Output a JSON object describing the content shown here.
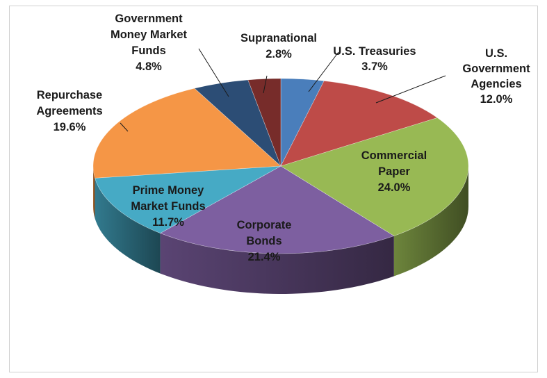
{
  "chart_data": {
    "type": "pie",
    "title": "",
    "slices": [
      {
        "label": "U.S. Treasuries",
        "value": 3.7,
        "display": "3.7%",
        "color": "#4a7ebb"
      },
      {
        "label": "U.S. Government Agencies",
        "value": 12.0,
        "display": "12.0%",
        "color": "#be4b48"
      },
      {
        "label": "Commercial Paper",
        "value": 24.0,
        "display": "24.0%",
        "color": "#98b954"
      },
      {
        "label": "Corporate Bonds",
        "value": 21.4,
        "display": "21.4%",
        "color": "#7d5fa0"
      },
      {
        "label": "Prime Money Market Funds",
        "value": 11.7,
        "display": "11.7%",
        "color": "#46aac5"
      },
      {
        "label": "Repurchase Agreements",
        "value": 19.6,
        "display": "19.6%",
        "color": "#f59646"
      },
      {
        "label": "Government Money Market Funds",
        "value": 4.8,
        "display": "4.8%",
        "color": "#2c4d75"
      },
      {
        "label": "Supranational",
        "value": 2.8,
        "display": "2.8%",
        "color": "#772c2a"
      }
    ],
    "label_lines": [
      [
        "U.S. Treasuries",
        "3.7%"
      ],
      [
        "U.S.",
        "Government",
        "Agencies",
        "12.0%"
      ],
      [
        "Commercial",
        "Paper",
        "24.0%"
      ],
      [
        "Corporate",
        "Bonds",
        "21.4%"
      ],
      [
        "Prime Money",
        "Market Funds",
        "11.7%"
      ],
      [
        "Repurchase",
        "Agreements",
        "19.6%"
      ],
      [
        "Government",
        "Money Market",
        "Funds",
        "4.8%"
      ],
      [
        "Supranational",
        "2.8%"
      ]
    ],
    "style": "3d-pie",
    "legend": "none",
    "data_labels": "outside-and-inside"
  }
}
